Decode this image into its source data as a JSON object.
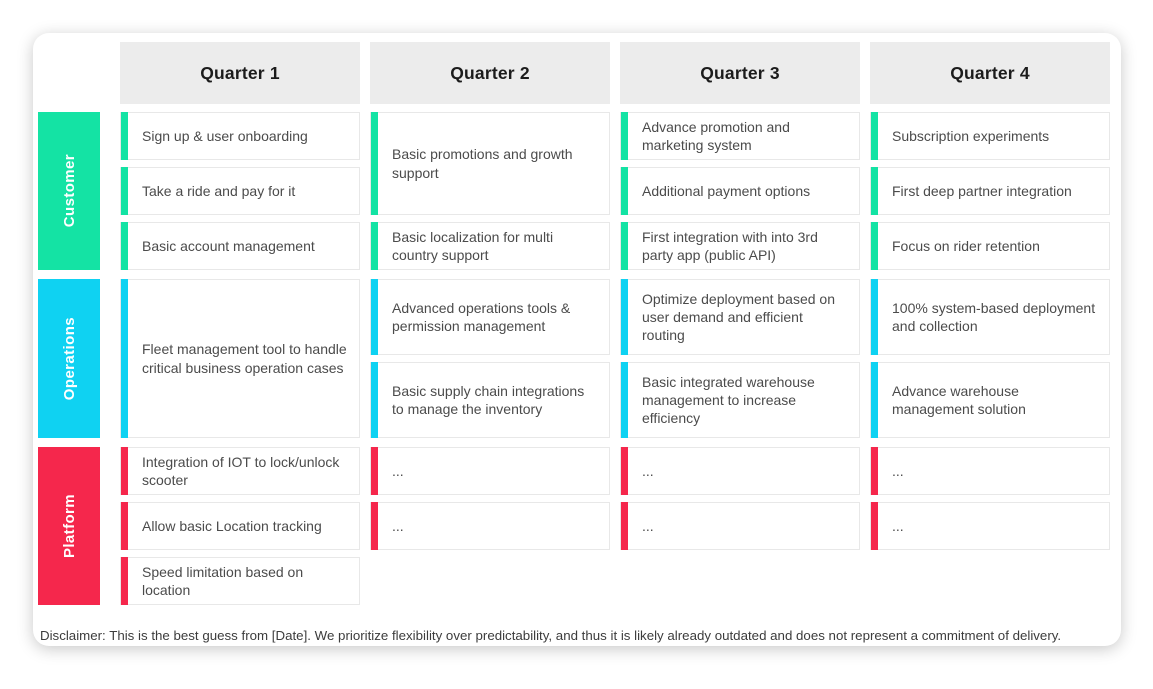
{
  "quarters": [
    "Quarter 1",
    "Quarter 2",
    "Quarter 3",
    "Quarter 4"
  ],
  "colors": {
    "customer": "#14e3a4",
    "operations": "#0fd2f2",
    "platform": "#f5274c",
    "header_bg": "#ececec"
  },
  "rows": [
    {
      "label": "Customer",
      "color": "#14e3a4",
      "fill": false,
      "columns": [
        {
          "cells": [
            {
              "text": "Sign up & user onboarding",
              "size": "1"
            },
            {
              "text": "Take a ride and pay for it",
              "size": "1"
            },
            {
              "text": "Basic account management",
              "size": "1"
            }
          ]
        },
        {
          "cells": [
            {
              "text": "Basic promotions and growth support",
              "size": "2"
            },
            {
              "text": "Basic localization for multi country support",
              "size": "1"
            }
          ]
        },
        {
          "cells": [
            {
              "text": "Advance promotion and marketing system",
              "size": "1"
            },
            {
              "text": "Additional payment options",
              "size": "1"
            },
            {
              "text": "First integration with into 3rd party app (public API)",
              "size": "1"
            }
          ]
        },
        {
          "cells": [
            {
              "text": "Subscription experiments",
              "size": "1"
            },
            {
              "text": "First deep partner integration",
              "size": "1"
            },
            {
              "text": "Focus on rider retention",
              "size": "1"
            }
          ]
        }
      ]
    },
    {
      "label": "Operations",
      "color": "#0fd2f2",
      "fill": true,
      "columns": [
        {
          "cells": [
            {
              "text": "Fleet management tool to handle critical business operation cases",
              "size": "fill"
            }
          ]
        },
        {
          "cells": [
            {
              "text": "Advanced operations tools & permission management",
              "size": "fill"
            },
            {
              "text": "Basic supply chain integrations to manage the inventory",
              "size": "fill"
            }
          ]
        },
        {
          "cells": [
            {
              "text": "Optimize deployment based on user demand and efficient routing",
              "size": "fill"
            },
            {
              "text": "Basic integrated warehouse management to increase efficiency",
              "size": "fill"
            }
          ]
        },
        {
          "cells": [
            {
              "text": "100% system-based deployment and collection",
              "size": "fill"
            },
            {
              "text": "Advance warehouse management solution",
              "size": "fill"
            }
          ]
        }
      ]
    },
    {
      "label": "Platform",
      "color": "#f5274c",
      "fill": false,
      "columns": [
        {
          "cells": [
            {
              "text": "Integration of IOT to lock/unlock scooter",
              "size": "1"
            },
            {
              "text": "Allow basic Location tracking",
              "size": "1"
            },
            {
              "text": "Speed limitation based on location",
              "size": "1"
            }
          ]
        },
        {
          "cells": [
            {
              "text": "...",
              "size": "1"
            },
            {
              "text": "...",
              "size": "1"
            }
          ]
        },
        {
          "cells": [
            {
              "text": "...",
              "size": "1"
            },
            {
              "text": "...",
              "size": "1"
            }
          ]
        },
        {
          "cells": [
            {
              "text": "...",
              "size": "1"
            },
            {
              "text": "...",
              "size": "1"
            }
          ]
        }
      ]
    }
  ],
  "disclaimer": "Disclaimer: This is the best guess from [Date]. We prioritize flexibility over predictability, and thus it is likely already outdated and does not represent a commitment of delivery."
}
